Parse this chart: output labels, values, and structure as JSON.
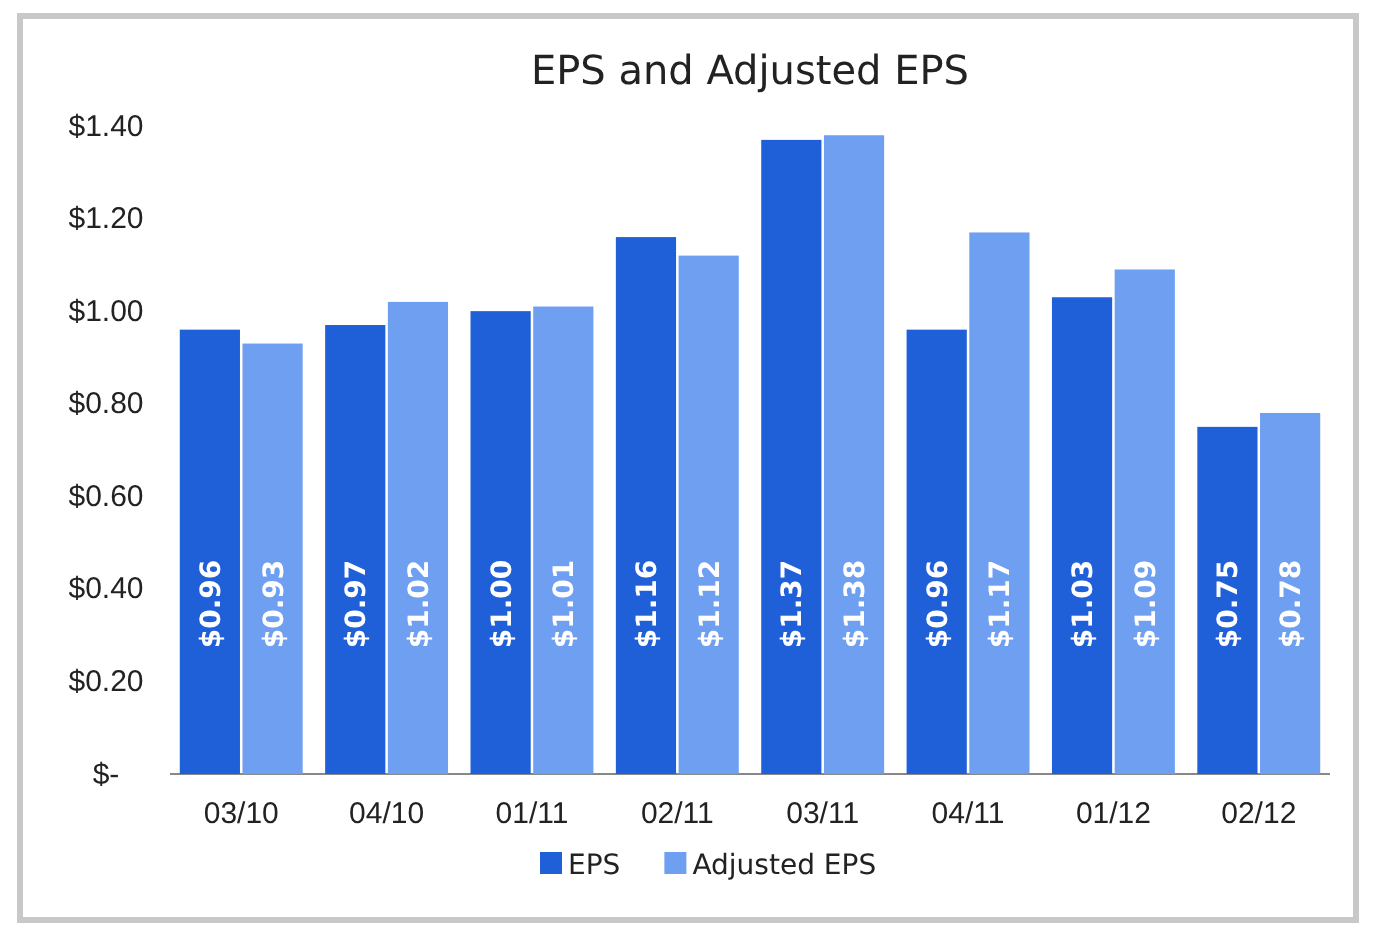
{
  "chart_data": {
    "type": "bar",
    "title": "EPS and Adjusted EPS",
    "categories": [
      "03/10",
      "04/10",
      "01/11",
      "02/11",
      "03/11",
      "04/11",
      "01/12",
      "02/12"
    ],
    "series": [
      {
        "name": "EPS",
        "color": "#1f5fd8",
        "values": [
          0.96,
          0.97,
          1.0,
          1.16,
          1.37,
          0.96,
          1.03,
          0.75
        ],
        "value_labels": [
          "$0.96",
          "$0.97",
          "$1.00",
          "$1.16",
          "$1.37",
          "$0.96",
          "$1.03",
          "$0.75"
        ]
      },
      {
        "name": "Adjusted EPS",
        "color": "#6f9ff0",
        "values": [
          0.93,
          1.02,
          1.01,
          1.12,
          1.38,
          1.17,
          1.09,
          0.78
        ],
        "value_labels": [
          "$0.93",
          "$1.02",
          "$1.01",
          "$1.12",
          "$1.38",
          "$1.17",
          "$1.09",
          "$0.78"
        ]
      }
    ],
    "ylim": [
      0,
      1.4
    ],
    "yticks": [
      {
        "value": 0,
        "label": "$-"
      },
      {
        "value": 0.2,
        "label": "$0.20"
      },
      {
        "value": 0.4,
        "label": "$0.40"
      },
      {
        "value": 0.6,
        "label": "$0.60"
      },
      {
        "value": 0.8,
        "label": "$0.80"
      },
      {
        "value": 1.0,
        "label": "$1.00"
      },
      {
        "value": 1.2,
        "label": "$1.20"
      },
      {
        "value": 1.4,
        "label": "$1.40"
      }
    ],
    "grid": false,
    "legend": "bottom"
  }
}
